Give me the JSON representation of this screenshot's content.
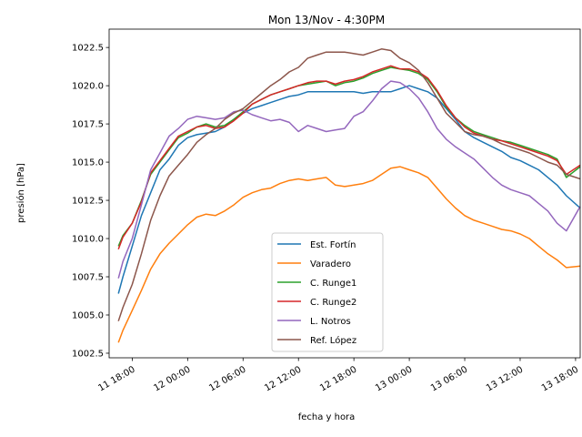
{
  "chart_data": {
    "type": "line",
    "title": "Mon 13/Nov - 4:30PM",
    "xlabel": "fecha y hora",
    "ylabel": "presión [hPa]",
    "x_unit": "hours",
    "xlim": [
      15.5,
      66.5
    ],
    "ylim": [
      1002.2,
      1023.7
    ],
    "x_ticks": [
      {
        "value": 18,
        "label": "11 18:00"
      },
      {
        "value": 24,
        "label": "12 00:00"
      },
      {
        "value": 30,
        "label": "12 06:00"
      },
      {
        "value": 36,
        "label": "12 12:00"
      },
      {
        "value": 42,
        "label": "12 18:00"
      },
      {
        "value": 48,
        "label": "13 00:00"
      },
      {
        "value": 54,
        "label": "13 06:00"
      },
      {
        "value": 60,
        "label": "13 12:00"
      },
      {
        "value": 66,
        "label": "13 18:00"
      }
    ],
    "y_ticks": [
      {
        "value": 1002.5,
        "label": "1002.5"
      },
      {
        "value": 1005.0,
        "label": "1005.0"
      },
      {
        "value": 1007.5,
        "label": "1007.5"
      },
      {
        "value": 1010.0,
        "label": "1010.0"
      },
      {
        "value": 1012.5,
        "label": "1012.5"
      },
      {
        "value": 1015.0,
        "label": "1015.0"
      },
      {
        "value": 1017.5,
        "label": "1017.5"
      },
      {
        "value": 1020.0,
        "label": "1020.0"
      },
      {
        "value": 1022.5,
        "label": "1022.5"
      }
    ],
    "grid": false,
    "legend_position": "lower center",
    "series": [
      {
        "name": "Est. Fortín",
        "color": "#1f77b4",
        "x": [
          16.5,
          17,
          18,
          19,
          20,
          21,
          22,
          23,
          24,
          25,
          26,
          27,
          28,
          29,
          30,
          31,
          32,
          33,
          34,
          35,
          36,
          37,
          38,
          39,
          40,
          41,
          42,
          43,
          44,
          45,
          46,
          47,
          48,
          49,
          50,
          51,
          52,
          53,
          54,
          55,
          56,
          57,
          58,
          59,
          60,
          61,
          62,
          63,
          64,
          65,
          66.5
        ],
        "y": [
          1006.4,
          1007.5,
          1009.5,
          1011.5,
          1013.0,
          1014.5,
          1015.2,
          1016.1,
          1016.6,
          1016.8,
          1016.9,
          1017.0,
          1017.3,
          1017.8,
          1018.2,
          1018.5,
          1018.7,
          1018.9,
          1019.1,
          1019.3,
          1019.4,
          1019.6,
          1019.6,
          1019.6,
          1019.6,
          1019.6,
          1019.6,
          1019.5,
          1019.6,
          1019.6,
          1019.6,
          1019.8,
          1020.0,
          1019.8,
          1019.6,
          1019.2,
          1018.5,
          1017.8,
          1017.0,
          1016.6,
          1016.3,
          1016.0,
          1015.7,
          1015.3,
          1015.1,
          1014.8,
          1014.5,
          1014.0,
          1013.5,
          1012.8,
          1012.0
        ]
      },
      {
        "name": "Varadero",
        "color": "#ff7f0e",
        "x": [
          16.5,
          17,
          18,
          19,
          20,
          21,
          22,
          23,
          24,
          25,
          26,
          27,
          28,
          29,
          30,
          31,
          32,
          33,
          34,
          35,
          36,
          37,
          38,
          39,
          40,
          41,
          42,
          43,
          44,
          45,
          46,
          47,
          48,
          49,
          50,
          51,
          52,
          53,
          54,
          55,
          56,
          57,
          58,
          59,
          60,
          61,
          62,
          63,
          64,
          65,
          66.5
        ],
        "y": [
          1003.2,
          1004.0,
          1005.3,
          1006.6,
          1008.0,
          1009.0,
          1009.7,
          1010.3,
          1010.9,
          1011.4,
          1011.6,
          1011.5,
          1011.8,
          1012.2,
          1012.7,
          1013.0,
          1013.2,
          1013.3,
          1013.6,
          1013.8,
          1013.9,
          1013.8,
          1013.9,
          1014.0,
          1013.5,
          1013.4,
          1013.5,
          1013.6,
          1013.8,
          1014.2,
          1014.6,
          1014.7,
          1014.5,
          1014.3,
          1014.0,
          1013.3,
          1012.6,
          1012.0,
          1011.5,
          1011.2,
          1011.0,
          1010.8,
          1010.6,
          1010.5,
          1010.3,
          1010.0,
          1009.5,
          1009.0,
          1008.6,
          1008.1,
          1008.2
        ]
      },
      {
        "name": "C. Runge1",
        "color": "#2ca02c",
        "x": [
          16.5,
          17,
          18,
          19,
          20,
          21,
          22,
          23,
          24,
          25,
          26,
          27,
          28,
          29,
          30,
          31,
          32,
          33,
          34,
          35,
          36,
          37,
          38,
          39,
          40,
          41,
          42,
          43,
          44,
          45,
          46,
          47,
          48,
          49,
          50,
          51,
          52,
          53,
          54,
          55,
          56,
          57,
          58,
          59,
          60,
          61,
          62,
          63,
          64,
          65,
          66.5
        ],
        "y": [
          1009.5,
          1010.2,
          1011.0,
          1012.5,
          1014.2,
          1015.0,
          1015.8,
          1016.6,
          1016.9,
          1017.3,
          1017.5,
          1017.3,
          1017.4,
          1017.8,
          1018.3,
          1018.8,
          1019.1,
          1019.4,
          1019.6,
          1019.8,
          1020.0,
          1020.1,
          1020.2,
          1020.3,
          1020.0,
          1020.2,
          1020.3,
          1020.5,
          1020.8,
          1021.0,
          1021.2,
          1021.1,
          1021.0,
          1020.8,
          1020.4,
          1019.6,
          1018.6,
          1017.9,
          1017.4,
          1017.0,
          1016.8,
          1016.6,
          1016.4,
          1016.3,
          1016.1,
          1015.9,
          1015.7,
          1015.5,
          1015.2,
          1014.0,
          1014.7
        ]
      },
      {
        "name": "C. Runge2",
        "color": "#d62728",
        "x": [
          16.5,
          17,
          18,
          19,
          20,
          21,
          22,
          23,
          24,
          25,
          26,
          27,
          28,
          29,
          30,
          31,
          32,
          33,
          34,
          35,
          36,
          37,
          38,
          39,
          40,
          41,
          42,
          43,
          44,
          45,
          46,
          47,
          48,
          49,
          50,
          51,
          52,
          53,
          54,
          55,
          56,
          57,
          58,
          59,
          60,
          61,
          62,
          63,
          64,
          65,
          66.5
        ],
        "y": [
          1009.3,
          1010.1,
          1011.0,
          1012.4,
          1014.3,
          1015.1,
          1015.9,
          1016.7,
          1017.0,
          1017.3,
          1017.4,
          1017.2,
          1017.3,
          1017.7,
          1018.2,
          1018.8,
          1019.1,
          1019.4,
          1019.6,
          1019.8,
          1020.0,
          1020.2,
          1020.3,
          1020.3,
          1020.1,
          1020.3,
          1020.4,
          1020.6,
          1020.9,
          1021.1,
          1021.3,
          1021.1,
          1021.1,
          1020.9,
          1020.5,
          1019.7,
          1018.7,
          1017.9,
          1017.3,
          1016.9,
          1016.7,
          1016.5,
          1016.4,
          1016.2,
          1016.0,
          1015.8,
          1015.6,
          1015.4,
          1015.1,
          1014.2,
          1014.8
        ]
      },
      {
        "name": "L. Notros",
        "color": "#9467bd",
        "x": [
          16.5,
          17,
          18,
          19,
          20,
          21,
          22,
          23,
          24,
          25,
          26,
          27,
          28,
          29,
          30,
          31,
          32,
          33,
          34,
          35,
          36,
          37,
          38,
          39,
          40,
          41,
          42,
          43,
          44,
          45,
          46,
          47,
          48,
          49,
          50,
          51,
          52,
          53,
          54,
          55,
          56,
          57,
          58,
          59,
          60,
          61,
          62,
          63,
          64,
          65,
          66.5
        ],
        "y": [
          1007.4,
          1008.5,
          1010.0,
          1012.2,
          1014.5,
          1015.6,
          1016.7,
          1017.2,
          1017.8,
          1018.0,
          1017.9,
          1017.8,
          1017.9,
          1018.3,
          1018.4,
          1018.1,
          1017.9,
          1017.7,
          1017.8,
          1017.6,
          1017.0,
          1017.4,
          1017.2,
          1017.0,
          1017.1,
          1017.2,
          1018.0,
          1018.3,
          1019.0,
          1019.8,
          1020.3,
          1020.2,
          1019.8,
          1019.2,
          1018.3,
          1017.2,
          1016.5,
          1016.0,
          1015.6,
          1015.2,
          1014.6,
          1014.0,
          1013.5,
          1013.2,
          1013.0,
          1012.8,
          1012.3,
          1011.8,
          1011.0,
          1010.5,
          1012.1
        ]
      },
      {
        "name": "Ref. López",
        "color": "#8c564b",
        "x": [
          16.5,
          17,
          18,
          19,
          20,
          21,
          22,
          23,
          24,
          25,
          26,
          27,
          28,
          29,
          30,
          31,
          32,
          33,
          34,
          35,
          36,
          37,
          38,
          39,
          40,
          41,
          42,
          43,
          44,
          45,
          46,
          47,
          48,
          49,
          50,
          51,
          52,
          53,
          54,
          55,
          56,
          57,
          58,
          59,
          60,
          61,
          62,
          63,
          64,
          65,
          66.5
        ],
        "y": [
          1004.6,
          1005.5,
          1007.0,
          1009.0,
          1011.2,
          1012.8,
          1014.1,
          1014.8,
          1015.5,
          1016.3,
          1016.8,
          1017.2,
          1017.8,
          1018.2,
          1018.5,
          1019.0,
          1019.5,
          1020.0,
          1020.4,
          1020.9,
          1021.2,
          1021.8,
          1022.0,
          1022.2,
          1022.2,
          1022.2,
          1022.1,
          1022.0,
          1022.2,
          1022.4,
          1022.3,
          1021.8,
          1021.5,
          1021.0,
          1020.2,
          1019.2,
          1018.2,
          1017.6,
          1017.0,
          1016.8,
          1016.7,
          1016.5,
          1016.2,
          1016.0,
          1015.8,
          1015.6,
          1015.3,
          1015.0,
          1014.8,
          1014.2,
          1013.9
        ]
      }
    ]
  }
}
